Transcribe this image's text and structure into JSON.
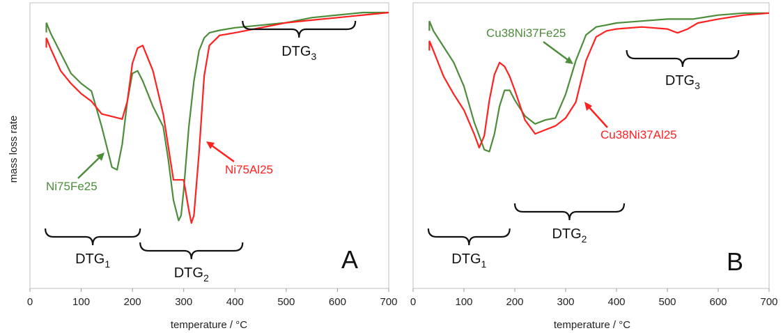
{
  "ylabel": "mass loss rate",
  "colors": {
    "green": "#4c8c3a",
    "red": "#ff2020",
    "black": "#111111"
  },
  "chart_data": [
    {
      "type": "line",
      "panel_label": "A",
      "xlabel": "temperature / °C",
      "ylabel": "mass loss rate",
      "xlim": [
        0,
        700
      ],
      "ylim": [
        -1,
        0
      ],
      "xticks": [
        "0",
        "100",
        "200",
        "300",
        "400",
        "500",
        "600",
        "700"
      ],
      "grid": false,
      "series": [
        {
          "name": "Ni75Fe25",
          "color": "#4c8c3a",
          "x": [
            32,
            40,
            60,
            80,
            100,
            120,
            140,
            160,
            170,
            180,
            190,
            200,
            210,
            220,
            240,
            260,
            270,
            280,
            290,
            295,
            300,
            310,
            320,
            330,
            340,
            350,
            370,
            400,
            450,
            500,
            550,
            600,
            650,
            700
          ],
          "y": [
            -0.04,
            -0.08,
            -0.16,
            -0.24,
            -0.28,
            -0.31,
            -0.45,
            -0.61,
            -0.62,
            -0.52,
            -0.35,
            -0.24,
            -0.23,
            -0.27,
            -0.37,
            -0.45,
            -0.58,
            -0.74,
            -0.82,
            -0.8,
            -0.7,
            -0.45,
            -0.27,
            -0.15,
            -0.1,
            -0.08,
            -0.07,
            -0.06,
            -0.05,
            -0.04,
            -0.02,
            -0.01,
            0.0,
            0.0
          ]
        },
        {
          "name": "Ni75Al25",
          "color": "#ff2020",
          "x": [
            32,
            40,
            60,
            80,
            100,
            120,
            140,
            160,
            180,
            190,
            200,
            210,
            220,
            240,
            260,
            280,
            290,
            300,
            310,
            315,
            320,
            330,
            340,
            350,
            370,
            400,
            450,
            500,
            550,
            600,
            650,
            700
          ],
          "y": [
            -0.1,
            -0.14,
            -0.23,
            -0.28,
            -0.32,
            -0.35,
            -0.4,
            -0.41,
            -0.42,
            -0.35,
            -0.2,
            -0.14,
            -0.13,
            -0.23,
            -0.4,
            -0.66,
            -0.66,
            -0.66,
            -0.78,
            -0.83,
            -0.8,
            -0.55,
            -0.25,
            -0.13,
            -0.09,
            -0.08,
            -0.06,
            -0.04,
            -0.03,
            -0.02,
            -0.01,
            0.0
          ]
        }
      ],
      "annotations": [
        {
          "text": "DTG",
          "sub": "1",
          "x_range": [
            30,
            215
          ]
        },
        {
          "text": "DTG",
          "sub": "2",
          "x_range": [
            215,
            415
          ]
        },
        {
          "text": "DTG",
          "sub": "3",
          "x_range": [
            415,
            635
          ]
        }
      ]
    },
    {
      "type": "line",
      "panel_label": "B",
      "xlabel": "temperature / °C",
      "ylabel": "mass loss rate",
      "xlim": [
        0,
        700
      ],
      "ylim": [
        -1,
        0
      ],
      "xticks": [
        "0",
        "100",
        "200",
        "300",
        "400",
        "500",
        "600",
        "700"
      ],
      "grid": false,
      "series": [
        {
          "name": "Cu38Ni37Fe25",
          "color": "#4c8c3a",
          "x": [
            32,
            40,
            60,
            80,
            100,
            120,
            140,
            150,
            160,
            170,
            180,
            190,
            200,
            220,
            240,
            260,
            280,
            300,
            320,
            340,
            360,
            380,
            400,
            450,
            500,
            550,
            600,
            650,
            700
          ],
          "y": [
            -0.05,
            -0.1,
            -0.18,
            -0.26,
            -0.38,
            -0.56,
            -0.7,
            -0.71,
            -0.62,
            -0.48,
            -0.4,
            -0.4,
            -0.45,
            -0.53,
            -0.57,
            -0.55,
            -0.54,
            -0.42,
            -0.25,
            -0.12,
            -0.08,
            -0.07,
            -0.06,
            -0.05,
            -0.04,
            -0.04,
            -0.02,
            -0.01,
            -0.01
          ]
        },
        {
          "name": "Cu38Ni37Al25",
          "color": "#ff2020",
          "x": [
            32,
            40,
            60,
            80,
            100,
            120,
            130,
            140,
            150,
            160,
            170,
            180,
            190,
            200,
            220,
            240,
            260,
            280,
            300,
            320,
            340,
            360,
            380,
            400,
            450,
            500,
            520,
            540,
            560,
            600,
            650,
            700
          ],
          "y": [
            -0.15,
            -0.2,
            -0.33,
            -0.42,
            -0.5,
            -0.62,
            -0.69,
            -0.63,
            -0.45,
            -0.32,
            -0.26,
            -0.28,
            -0.33,
            -0.4,
            -0.55,
            -0.62,
            -0.6,
            -0.58,
            -0.54,
            -0.46,
            -0.25,
            -0.13,
            -0.1,
            -0.09,
            -0.08,
            -0.09,
            -0.11,
            -0.09,
            -0.06,
            -0.04,
            -0.02,
            -0.01
          ]
        }
      ],
      "annotations": [
        {
          "text": "DTG",
          "sub": "1",
          "x_range": [
            30,
            190
          ]
        },
        {
          "text": "DTG",
          "sub": "2",
          "x_range": [
            200,
            415
          ]
        },
        {
          "text": "DTG",
          "sub": "3",
          "x_range": [
            420,
            640
          ]
        }
      ]
    }
  ]
}
